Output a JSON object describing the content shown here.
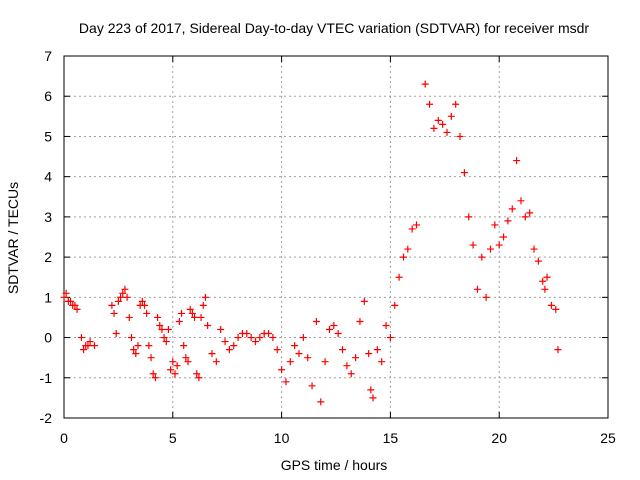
{
  "chart_data": {
    "type": "scatter",
    "title": "Day 223 of 2017, Sidereal Day-to-day VTEC variation (SDTVAR) for receiver msdr",
    "xlabel": "GPS time / hours",
    "ylabel": "SDTVAR / TECUs",
    "xlim": [
      0,
      25
    ],
    "ylim": [
      -2,
      7
    ],
    "xticks": [
      0,
      5,
      10,
      15,
      20,
      25
    ],
    "yticks": [
      -2,
      -1,
      0,
      1,
      2,
      3,
      4,
      5,
      6,
      7
    ],
    "xtick_labels": [
      "0",
      "5",
      "10",
      "15",
      "20",
      "25"
    ],
    "ytick_labels": [
      "-2",
      "-1",
      "0",
      "1",
      "2",
      "3",
      "4",
      "5",
      "6",
      "7"
    ],
    "grid": true,
    "marker": "+",
    "color": "#ff0000",
    "series": [
      {
        "name": "SDTVAR",
        "x": [
          0.0,
          0.1,
          0.2,
          0.3,
          0.4,
          0.5,
          0.6,
          0.8,
          0.9,
          1.0,
          1.1,
          1.2,
          1.4,
          2.2,
          2.3,
          2.4,
          2.5,
          2.6,
          2.7,
          2.8,
          2.9,
          3.0,
          3.1,
          3.2,
          3.3,
          3.4,
          3.5,
          3.6,
          3.7,
          3.8,
          3.9,
          4.0,
          4.1,
          4.2,
          4.3,
          4.4,
          4.5,
          4.6,
          4.7,
          4.8,
          4.9,
          5.0,
          5.1,
          5.2,
          5.3,
          5.4,
          5.5,
          5.6,
          5.7,
          5.8,
          5.9,
          6.0,
          6.1,
          6.2,
          6.3,
          6.4,
          6.5,
          6.6,
          6.8,
          7.0,
          7.2,
          7.4,
          7.6,
          7.8,
          8.0,
          8.2,
          8.4,
          8.6,
          8.8,
          9.0,
          9.2,
          9.4,
          9.6,
          9.8,
          10.0,
          10.2,
          10.4,
          10.6,
          10.8,
          11.0,
          11.2,
          11.4,
          11.6,
          11.8,
          12.0,
          12.2,
          12.4,
          12.6,
          12.8,
          13.0,
          13.2,
          13.4,
          13.6,
          13.8,
          14.0,
          14.1,
          14.2,
          14.4,
          14.6,
          14.8,
          15.0,
          15.2,
          15.4,
          15.6,
          15.8,
          16.0,
          16.2,
          16.6,
          16.8,
          17.0,
          17.2,
          17.4,
          17.6,
          17.8,
          18.0,
          18.2,
          18.4,
          18.6,
          18.8,
          19.0,
          19.2,
          19.4,
          19.6,
          19.8,
          20.0,
          20.2,
          20.4,
          20.6,
          20.8,
          21.0,
          21.2,
          21.4,
          21.6,
          21.8,
          22.0,
          22.1,
          22.2,
          22.4,
          22.6,
          22.7
        ],
        "y": [
          1.0,
          1.1,
          0.9,
          0.9,
          0.8,
          0.8,
          0.7,
          0.0,
          -0.3,
          -0.2,
          -0.2,
          -0.1,
          -0.2,
          0.8,
          0.6,
          0.1,
          0.9,
          1.0,
          1.1,
          1.2,
          1.0,
          0.5,
          0.0,
          -0.3,
          -0.4,
          -0.2,
          0.8,
          0.9,
          0.8,
          0.6,
          -0.2,
          -0.5,
          -0.9,
          -1.0,
          0.5,
          0.3,
          0.2,
          0.0,
          -0.1,
          0.2,
          -0.8,
          -0.6,
          -0.9,
          -0.7,
          0.4,
          0.6,
          -0.2,
          -0.5,
          -0.6,
          0.7,
          0.6,
          0.5,
          -0.9,
          -1.0,
          0.5,
          0.8,
          1.0,
          0.3,
          -0.4,
          -0.6,
          0.2,
          -0.1,
          -0.3,
          -0.2,
          0.0,
          0.1,
          0.1,
          0.0,
          -0.1,
          0.0,
          0.1,
          0.1,
          0.0,
          -0.3,
          -0.8,
          -1.1,
          -0.6,
          -0.2,
          -0.4,
          0.0,
          -0.5,
          -1.2,
          0.4,
          -1.6,
          -0.6,
          0.2,
          0.3,
          0.1,
          -0.3,
          -0.7,
          -0.9,
          -0.5,
          0.4,
          0.9,
          -0.4,
          -1.3,
          -1.5,
          -0.3,
          -0.6,
          0.3,
          0.0,
          0.8,
          1.5,
          2.0,
          2.2,
          2.7,
          2.8,
          6.3,
          5.8,
          5.2,
          5.4,
          5.3,
          5.1,
          5.5,
          5.8,
          5.0,
          4.1,
          3.0,
          2.3,
          1.2,
          2.0,
          1.0,
          2.2,
          2.8,
          2.3,
          2.5,
          2.9,
          3.2,
          4.4,
          3.4,
          3.0,
          3.1,
          2.2,
          1.9,
          1.4,
          1.2,
          1.5,
          0.8,
          0.7,
          -0.3
        ]
      }
    ]
  }
}
